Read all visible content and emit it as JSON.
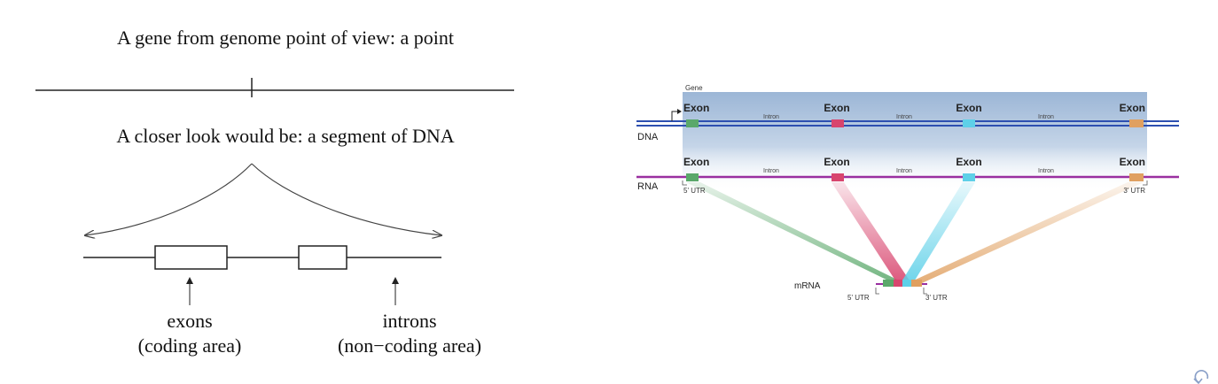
{
  "left": {
    "title": "A gene from genome point of view: a point",
    "subtitle": "A closer look would be: a segment of DNA",
    "exons_label": "exons",
    "exons_sub": "(coding area)",
    "introns_label": "introns",
    "introns_sub": "(non−coding area)"
  },
  "right": {
    "gene_label": "Gene",
    "dna_label": "DNA",
    "rna_label": "RNA",
    "mrna_label": "mRNA",
    "exon_labels": [
      "Exon",
      "Exon",
      "Exon",
      "Exon"
    ],
    "intron_labels": [
      "Intron",
      "Intron",
      "Intron"
    ],
    "utr5": "5' UTR",
    "utr3": "3' UTR",
    "utr5_mrna": "5' UTR",
    "utr3_mrna": "3' UTR",
    "exon_colors": [
      "#5aa86a",
      "#d8456e",
      "#5ed0e8",
      "#e0a060"
    ]
  },
  "nav": {
    "icon": "undo-icon"
  }
}
